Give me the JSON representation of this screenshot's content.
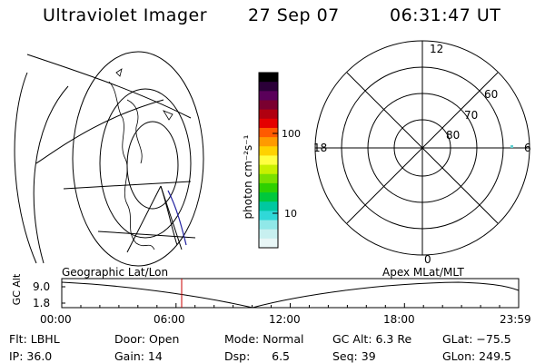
{
  "header": {
    "instrument": "Ultraviolet Imager",
    "date": "27 Sep 07",
    "time": "06:31:47 UT"
  },
  "colorbar": {
    "unit_label": "photon cm⁻²s⁻¹",
    "ticks": [
      "100",
      "10"
    ],
    "colors": [
      "#000000",
      "#2b0038",
      "#5a005a",
      "#7a0030",
      "#b00010",
      "#e40000",
      "#ff5a00",
      "#ff9a00",
      "#ffd200",
      "#ffff40",
      "#c8f000",
      "#7ae000",
      "#2ed000",
      "#00c83c",
      "#00c8a0",
      "#30d8d8",
      "#90e8e8",
      "#c8f0f0",
      "#e8f6f6"
    ]
  },
  "polar": {
    "mlt_labels": {
      "top": "12",
      "left": "18",
      "right": "6",
      "bottom": "0"
    },
    "mlat_labels": [
      "60",
      "70",
      "80"
    ]
  },
  "timeline": {
    "y_axis_label": "GC Alt",
    "y_ticks": [
      "9.0",
      "1.8"
    ],
    "left_label": "Geographic Lat/Lon",
    "right_label": "Apex MLat/MLT",
    "x_ticks": [
      "00:00",
      "06:00",
      "12:00",
      "18:00",
      "23:59"
    ],
    "marker_color": "#c80000"
  },
  "info": {
    "filter": "Flt: LBHL",
    "ip": "IP: 36.0",
    "door": "Door: Open",
    "gain": "Gain: 14",
    "mode": "Mode: Normal",
    "dsp": "Dsp:      6.5",
    "gc_alt": "GC Alt: 6.3 Re",
    "seq": "Seq: 39",
    "glat": "GLat: −75.5",
    "glon": "GLon: 249.5"
  }
}
